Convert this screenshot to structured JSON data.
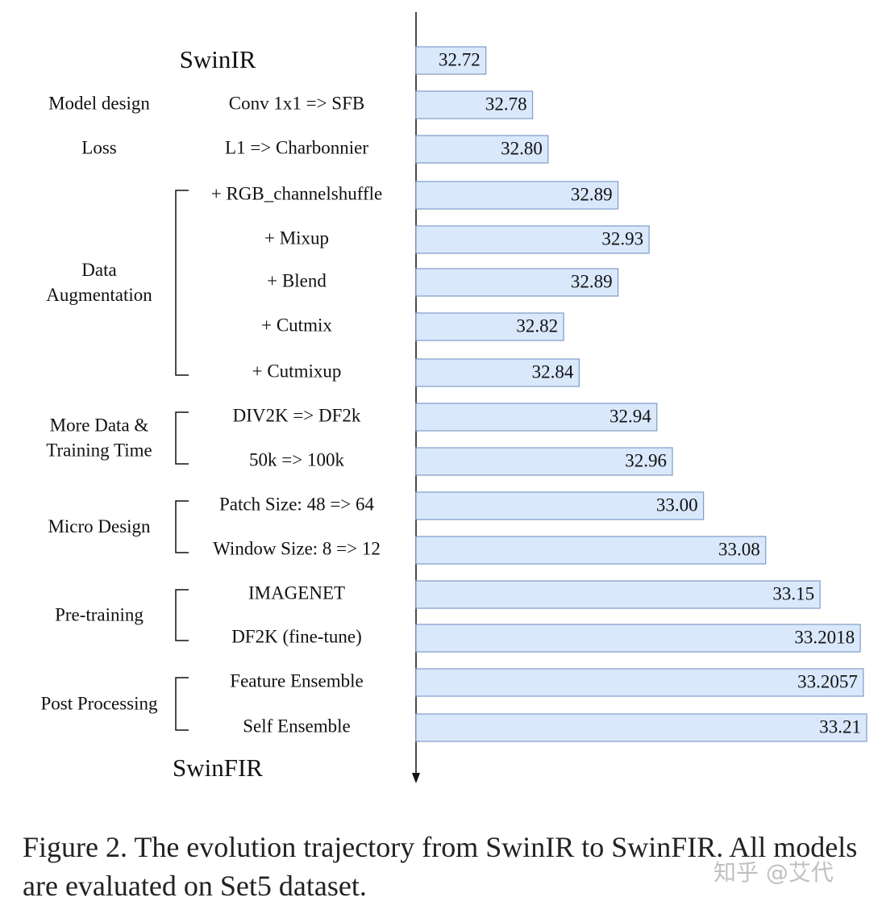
{
  "chart_data": {
    "type": "bar",
    "orientation": "horizontal",
    "start_label": "SwinIR",
    "end_label": "SwinFIR",
    "categories": [
      "",
      "Conv 1x1 => SFB",
      "L1 => Charbonnier",
      "+ RGB_channelshuffle",
      "+ Mixup",
      "+ Blend",
      "+ Cutmix",
      "+ Cutmixup",
      "DIV2K => DF2k",
      "50k => 100k",
      "Patch Size: 48 => 64",
      "Window Size: 8 => 12",
      "IMAGENET",
      "DF2K (fine-tune)",
      "Feature Ensemble",
      "Self Ensemble"
    ],
    "values": [
      32.72,
      32.78,
      32.8,
      32.89,
      32.93,
      32.89,
      32.82,
      32.84,
      32.94,
      32.96,
      33.0,
      33.08,
      33.15,
      33.2018,
      33.2057,
      33.21
    ],
    "value_labels": [
      "32.72",
      "32.78",
      "32.80",
      "32.89",
      "32.93",
      "32.89",
      "32.82",
      "32.84",
      "32.94",
      "32.96",
      "33.00",
      "33.08",
      "33.15",
      "33.2018",
      "33.2057",
      "33.21"
    ],
    "color": "#dae8fc",
    "xlim": [
      32.63,
      33.21
    ],
    "groups": [
      {
        "lines": [
          "Model design"
        ]
      },
      {
        "lines": [
          "Loss"
        ]
      },
      {
        "lines": [
          "Data",
          "Augmentation"
        ]
      },
      {
        "lines": [
          "More Data &",
          "Training Time"
        ]
      },
      {
        "lines": [
          "Micro Design"
        ]
      },
      {
        "lines": [
          "Pre-training"
        ]
      },
      {
        "lines": [
          "Post Processing"
        ]
      }
    ],
    "caption": "Figure 2.  The evolution trajectory from SwinIR to SwinFIR. All models are evaluated on Set5 dataset.",
    "watermark": "知乎 @艾代"
  }
}
